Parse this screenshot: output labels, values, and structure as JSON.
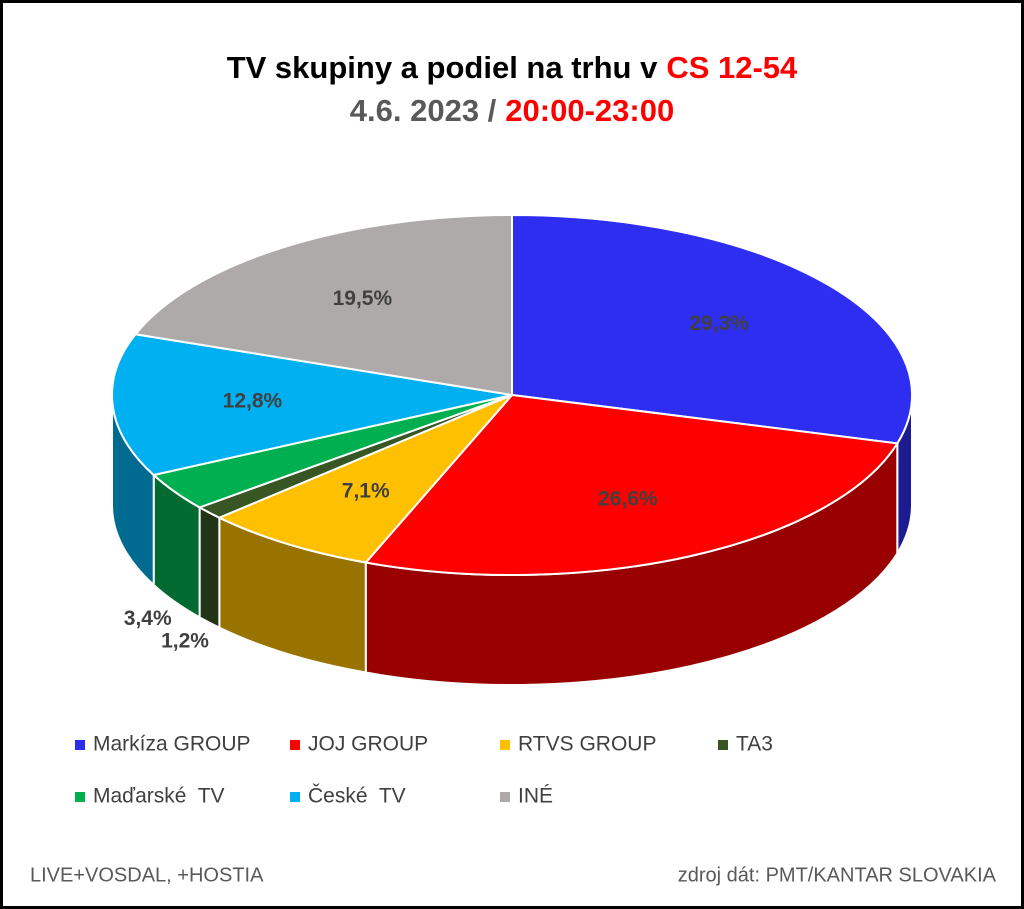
{
  "chart_data": {
    "type": "pie3d",
    "title": "TV skupiny a podiel na trhu v",
    "title_highlight": "CS 12-54",
    "subtitle": "4.6. 2023 /",
    "subtitle_highlight": "20:00-23:00",
    "categories": [
      "Markíza GROUP",
      "JOJ GROUP",
      "RTVS GROUP",
      "TA3",
      "Maďarské  TV",
      "České  TV",
      "INÉ"
    ],
    "values": [
      29.3,
      26.6,
      7.1,
      1.2,
      3.4,
      12.8,
      19.5
    ],
    "value_labels": [
      "29,3%",
      "26,6%",
      "7,1%",
      "1,2%",
      "3,4%",
      "12,8%",
      "19,5%"
    ],
    "colors": [
      "#2e2ef0",
      "#ff0000",
      "#ffc000",
      "#375623",
      "#00b050",
      "#00b0f0",
      "#aeaaaa"
    ],
    "legend": "bottom",
    "notes": [
      "LIVE+VOSDAL, +HOSTIA",
      "zdroj dát: PMT/KANTAR SLOVAKIA"
    ]
  }
}
